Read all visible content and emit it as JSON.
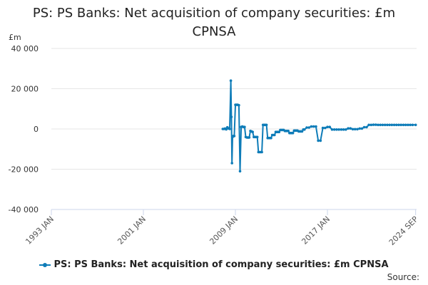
{
  "title_line1": "PS: PS Banks: Net acquisition of company securities: £m",
  "title_line2": "CPNSA",
  "y_unit_label": "£m",
  "source_label": "Source:",
  "series_color": "#0e7cb8",
  "chart_data": {
    "type": "line",
    "title": "PS: PS Banks: Net acquisition of company securities: £m CPNSA",
    "xlabel": "",
    "ylabel": "£m",
    "ylim": [
      -40000,
      40000
    ],
    "yticks": [
      40000,
      20000,
      0,
      -20000,
      -40000
    ],
    "ytick_labels": [
      "40 000",
      "20 000",
      "0",
      "-20 000",
      "-40 000"
    ],
    "xlim": [
      1993.0,
      2024.75
    ],
    "xticks": [
      1993.0,
      2001.0,
      2009.0,
      2017.0,
      2024.667
    ],
    "xtick_labels": [
      "1993 JAN",
      "2001 JAN",
      "2009 JAN",
      "2017 JAN",
      "2024 SEP"
    ],
    "grid": true,
    "legend_position": "bottom",
    "series": [
      {
        "name": "PS: PS Banks: Net acquisition of company securities: £m CPNSA",
        "x": [
          2007.9,
          2008.0,
          2008.1,
          2008.2,
          2008.3,
          2008.4,
          2008.5,
          2008.6,
          2008.65,
          2008.7,
          2008.75,
          2008.8,
          2008.85,
          2008.9,
          2009.0,
          2009.1,
          2009.2,
          2009.3,
          2009.4,
          2009.5,
          2009.6,
          2009.7,
          2009.8,
          2009.9,
          2010.0,
          2010.1,
          2010.2,
          2010.3,
          2010.4,
          2010.5,
          2010.6,
          2010.7,
          2010.8,
          2010.9,
          2011.0,
          2011.1,
          2011.2,
          2011.3,
          2011.4,
          2011.5,
          2011.6,
          2011.7,
          2011.8,
          2011.9,
          2012.0,
          2012.1,
          2012.2,
          2012.3,
          2012.4,
          2012.5,
          2012.6,
          2012.7,
          2012.8,
          2012.9,
          2013.0,
          2013.1,
          2013.2,
          2013.3,
          2013.4,
          2013.5,
          2013.6,
          2013.7,
          2013.8,
          2013.9,
          2014.0,
          2014.1,
          2014.2,
          2014.3,
          2014.4,
          2014.5,
          2014.6,
          2014.7,
          2014.8,
          2014.9,
          2015.0,
          2015.2,
          2015.4,
          2015.6,
          2015.8,
          2016.0,
          2016.2,
          2016.4,
          2016.6,
          2016.8,
          2017.0,
          2017.2,
          2017.4,
          2017.6,
          2017.8,
          2018.0,
          2018.2,
          2018.4,
          2018.6,
          2018.8,
          2019.0,
          2019.2,
          2019.4,
          2019.6,
          2019.8,
          2020.0,
          2020.2,
          2020.4,
          2020.6,
          2020.8,
          2021.0,
          2021.2,
          2021.4,
          2021.6,
          2021.8,
          2022.0,
          2022.2,
          2022.4,
          2022.6,
          2022.8,
          2023.0,
          2023.2,
          2023.4,
          2023.6,
          2023.8,
          2024.0,
          2024.2,
          2024.4,
          2024.667
        ],
        "y": [
          0,
          0,
          200,
          -200,
          800,
          300,
          0,
          24000,
          6000,
          -17000,
          -4000,
          -3500,
          -3500,
          -3500,
          12000,
          12000,
          12000,
          11800,
          -21000,
          1000,
          1200,
          1000,
          1000,
          -4000,
          -4200,
          -4300,
          -4200,
          -1000,
          -1200,
          -1500,
          -4000,
          -4000,
          -4000,
          -4000,
          -11500,
          -11500,
          -11500,
          -11500,
          2000,
          2000,
          2000,
          2000,
          -4500,
          -4500,
          -4500,
          -4500,
          -3000,
          -3000,
          -3000,
          -1500,
          -1500,
          -1500,
          -1500,
          -500,
          -500,
          -500,
          -500,
          -1000,
          -1000,
          -1000,
          -1000,
          -2000,
          -2000,
          -2000,
          -2000,
          -800,
          -800,
          -800,
          -800,
          -1200,
          -1200,
          -1200,
          -1200,
          -300,
          -300,
          700,
          700,
          1200,
          1200,
          1200,
          -5800,
          -5800,
          500,
          500,
          1000,
          1000,
          -300,
          -300,
          -300,
          -300,
          -300,
          -300,
          -300,
          300,
          300,
          -100,
          -100,
          -100,
          200,
          200,
          900,
          900,
          2000,
          2000,
          2100,
          2100,
          2000,
          2000,
          2000,
          2000,
          2000,
          2000,
          2000,
          2000,
          2000,
          2000,
          2000,
          2000,
          2000,
          2000,
          2000,
          2000,
          2000
        ]
      }
    ]
  }
}
